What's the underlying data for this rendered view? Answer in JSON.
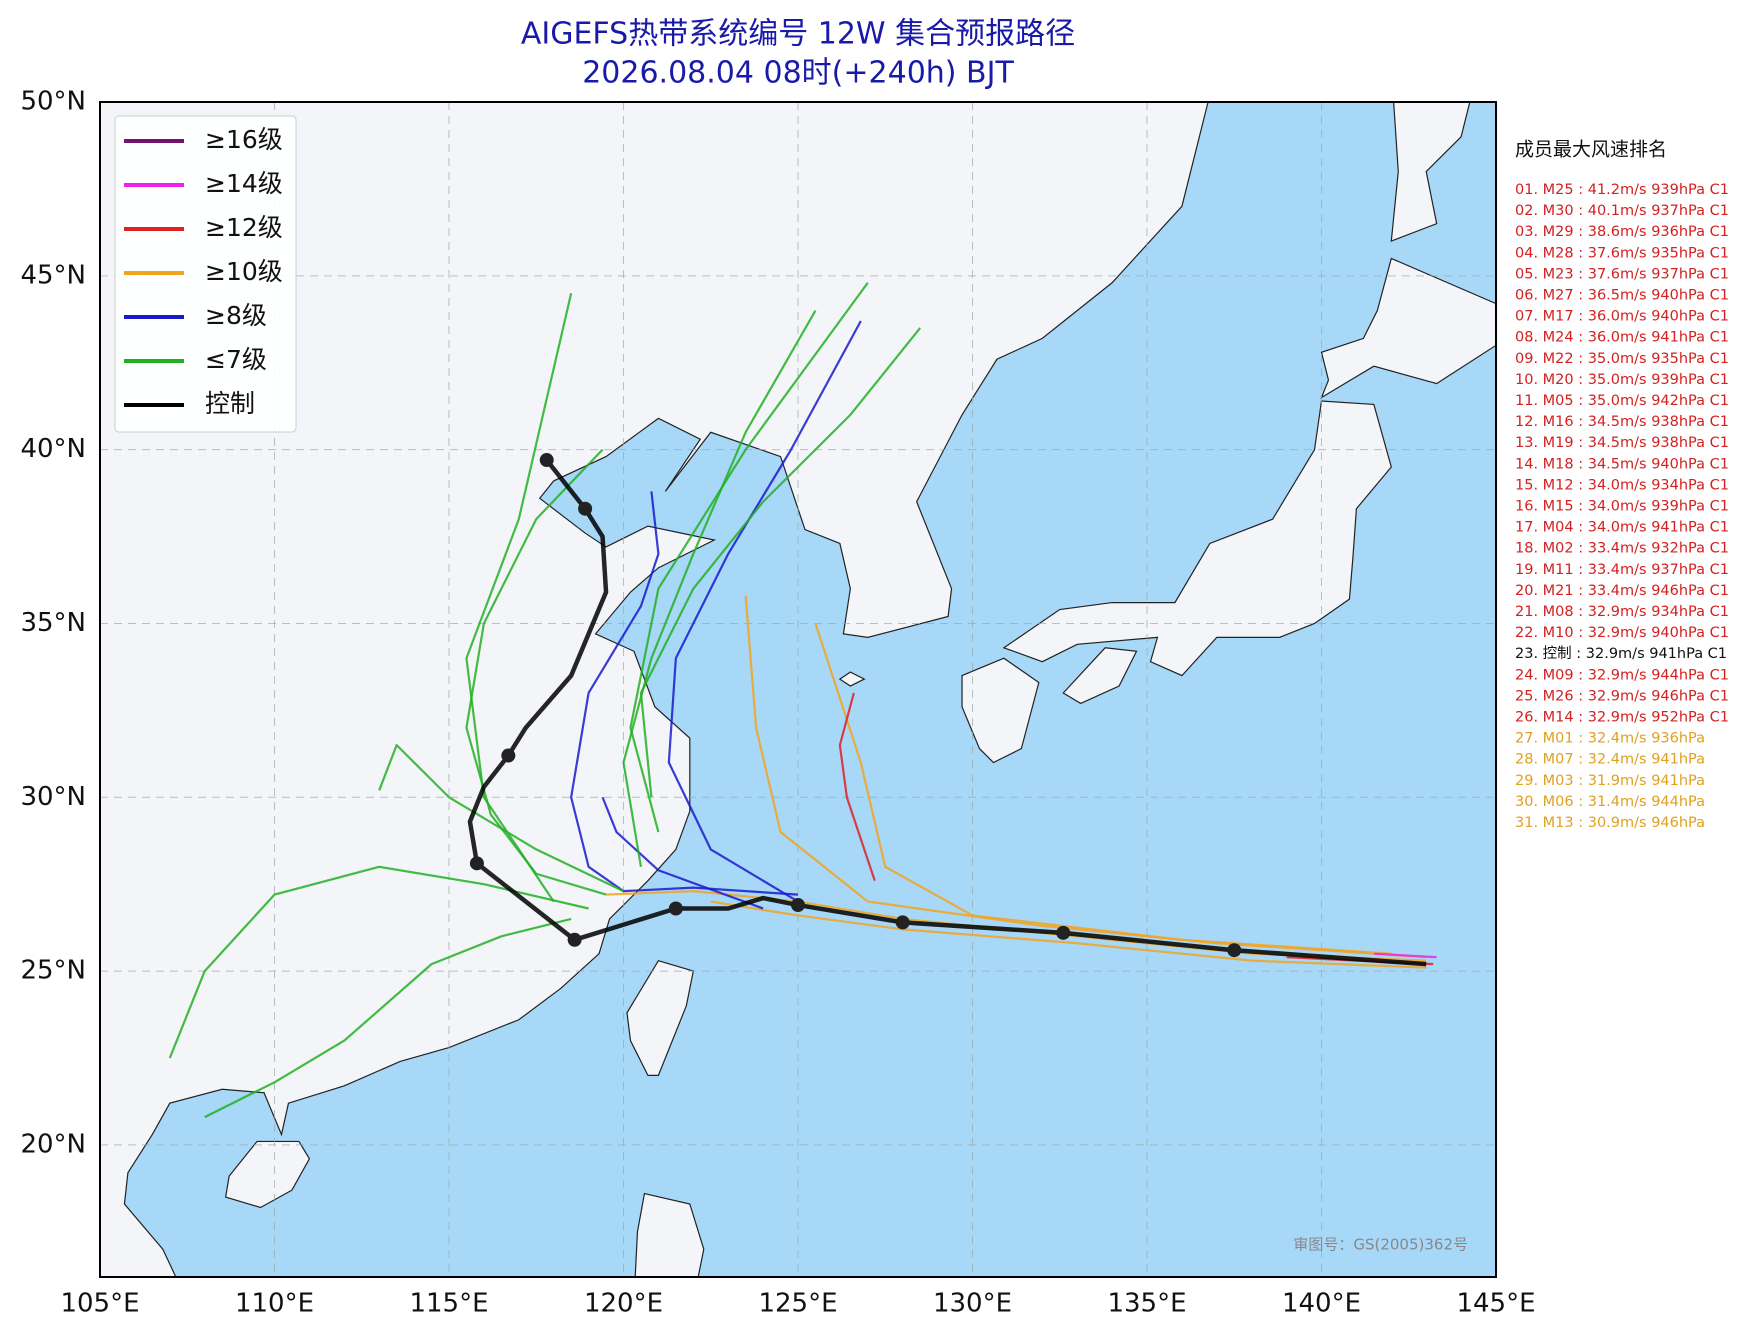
{
  "chart_data": {
    "type": "track_map",
    "title": "AIGEFS热带系统编号 12W 集合预报路径",
    "subtitle": "2026.08.04 08时(+240h) BJT",
    "xlim": [
      105,
      145
    ],
    "ylim": [
      16.2,
      50
    ],
    "xticks": [
      {
        "value": 105,
        "label": "105°E"
      },
      {
        "value": 110,
        "label": "110°E"
      },
      {
        "value": 115,
        "label": "115°E"
      },
      {
        "value": 120,
        "label": "120°E"
      },
      {
        "value": 125,
        "label": "125°E"
      },
      {
        "value": 130,
        "label": "130°E"
      },
      {
        "value": 135,
        "label": "135°E"
      },
      {
        "value": 140,
        "label": "140°E"
      },
      {
        "value": 145,
        "label": "145°E"
      }
    ],
    "yticks": [
      {
        "value": 20,
        "label": "20°N"
      },
      {
        "value": 25,
        "label": "25°N"
      },
      {
        "value": 30,
        "label": "30°N"
      },
      {
        "value": 35,
        "label": "35°N"
      },
      {
        "value": 40,
        "label": "40°N"
      },
      {
        "value": 45,
        "label": "45°N"
      },
      {
        "value": 50,
        "label": "50°N"
      }
    ],
    "grid": true,
    "legend": [
      {
        "label": "≥16级",
        "color": "#7a1070"
      },
      {
        "label": "≥14级",
        "color": "#ee22ee"
      },
      {
        "label": "≥12级",
        "color": "#dd2222"
      },
      {
        "label": "≥10级",
        "color": "#f2a31e"
      },
      {
        "label": "≥8级",
        "color": "#1a1acc"
      },
      {
        "label": "≤7级",
        "color": "#22b022"
      },
      {
        "label": "控制",
        "color": "#000000"
      }
    ],
    "members": [
      {
        "color": "#f2a31e",
        "lon": [
          143,
          138,
          133,
          128,
          125,
          122,
          119.5
        ],
        "lat": [
          25.3,
          25.5,
          26.0,
          26.5,
          27.0,
          27.3,
          27.2
        ]
      },
      {
        "color": "#f2a31e",
        "lon": [
          143,
          138,
          133,
          128,
          125,
          122.5
        ],
        "lat": [
          25.1,
          25.3,
          25.8,
          26.2,
          26.6,
          27.0
        ]
      },
      {
        "color": "#f2a31e",
        "lon": [
          143,
          137,
          132,
          127,
          124.5,
          123.8,
          123.5
        ],
        "lat": [
          25.4,
          25.8,
          26.3,
          27,
          29,
          32,
          35.8
        ]
      },
      {
        "color": "#f2a31e",
        "lon": [
          142,
          136,
          130,
          127.5,
          126.8,
          125.5
        ],
        "lat": [
          25.5,
          25.9,
          26.6,
          28,
          31,
          35
        ]
      },
      {
        "color": "#dd2222",
        "lon": [
          143.2,
          141,
          139
        ],
        "lat": [
          25.2,
          25.3,
          25.4
        ]
      },
      {
        "color": "#ee22ee",
        "lon": [
          143.3,
          141.5
        ],
        "lat": [
          25.4,
          25.5
        ]
      },
      {
        "color": "#dd2222",
        "lon": [
          127.2,
          126.4,
          126.2,
          126.6
        ],
        "lat": [
          27.6,
          30,
          31.5,
          33
        ]
      },
      {
        "color": "#1a1acc",
        "lon": [
          125,
          122,
          120,
          119,
          118.5,
          119,
          120.5,
          121,
          120.8
        ],
        "lat": [
          27.2,
          27.4,
          27.3,
          28,
          30,
          33,
          35.5,
          37,
          38.8
        ]
      },
      {
        "color": "#1a1acc",
        "lon": [
          125,
          122.5,
          121.3,
          121.5,
          123,
          124.8,
          126.8
        ],
        "lat": [
          27,
          28.5,
          31,
          34,
          37,
          40,
          43.7
        ]
      },
      {
        "color": "#1a1acc",
        "lon": [
          124,
          121,
          119.8,
          119.4
        ],
        "lat": [
          26.8,
          27.9,
          29,
          30
        ]
      },
      {
        "color": "#22b022",
        "lon": [
          119.5,
          117.5,
          116.2,
          115.5,
          116,
          117.5,
          119.4
        ],
        "lat": [
          27.2,
          27.8,
          29.5,
          32,
          35,
          38,
          40
        ]
      },
      {
        "color": "#22b022",
        "lon": [
          119,
          116,
          113,
          110,
          108,
          107
        ],
        "lat": [
          26.8,
          27.5,
          28,
          27.2,
          25,
          22.5
        ]
      },
      {
        "color": "#22b022",
        "lon": [
          120,
          117.5,
          115,
          113.5,
          113
        ],
        "lat": [
          27.3,
          28.5,
          30,
          31.5,
          30.2
        ]
      },
      {
        "color": "#22b022",
        "lon": [
          120.5,
          120,
          120.8,
          122,
          123.5,
          125.5
        ],
        "lat": [
          28,
          31,
          34,
          37,
          40.5,
          44
        ]
      },
      {
        "color": "#22b022",
        "lon": [
          120.8,
          120.5,
          122,
          124,
          126.5,
          128.5
        ],
        "lat": [
          30,
          33,
          36,
          38.5,
          41,
          43.5
        ]
      },
      {
        "color": "#22b022",
        "lon": [
          118,
          116,
          115.5,
          117,
          118.5
        ],
        "lat": [
          27,
          30,
          34,
          38,
          44.5
        ]
      },
      {
        "color": "#22b022",
        "lon": [
          118.5,
          116.5,
          114.5,
          112,
          110,
          108
        ],
        "lat": [
          26.5,
          26,
          25.2,
          23,
          21.8,
          20.8
        ]
      },
      {
        "color": "#22b022",
        "lon": [
          121,
          120.2,
          121,
          123.5,
          127
        ],
        "lat": [
          29,
          32,
          36,
          40,
          44.8
        ]
      }
    ],
    "control": {
      "color": "#000000",
      "lon": [
        143,
        137.5,
        132.6,
        128,
        125,
        124,
        123,
        121.5,
        118.6,
        115.8,
        115.6,
        116,
        116.7,
        117.2,
        118.5,
        119.5,
        119.4,
        118.9,
        117.8
      ],
      "lat": [
        25.2,
        25.6,
        26.1,
        26.4,
        26.9,
        27.1,
        26.8,
        26.8,
        25.9,
        28.1,
        29.3,
        30.3,
        31.2,
        32,
        33.5,
        35.9,
        37.5,
        38.3,
        39.7
      ]
    },
    "control_points": {
      "lon": [
        137.5,
        132.6,
        128,
        125,
        121.5,
        118.6,
        115.8,
        116.7,
        118.9,
        117.8
      ],
      "lat": [
        25.6,
        26.1,
        26.4,
        26.9,
        26.8,
        25.9,
        28.1,
        31.2,
        38.3,
        39.7
      ]
    },
    "ranking": {
      "title": "成员最大风速排名",
      "entries": [
        {
          "text": "01. M25 : 41.2m/s 939hPa C1",
          "color": "#d42020"
        },
        {
          "text": "02. M30 : 40.1m/s 937hPa C1",
          "color": "#d42020"
        },
        {
          "text": "03. M29 : 38.6m/s 936hPa C1",
          "color": "#d42020"
        },
        {
          "text": "04. M28 : 37.6m/s 935hPa C1",
          "color": "#d42020"
        },
        {
          "text": "05. M23 : 37.6m/s 937hPa C1",
          "color": "#d42020"
        },
        {
          "text": "06. M27 : 36.5m/s 940hPa C1",
          "color": "#d42020"
        },
        {
          "text": "07. M17 : 36.0m/s 940hPa C1",
          "color": "#d42020"
        },
        {
          "text": "08. M24 : 36.0m/s 941hPa C1",
          "color": "#d42020"
        },
        {
          "text": "09. M22 : 35.0m/s 935hPa C1",
          "color": "#d42020"
        },
        {
          "text": "10. M20 : 35.0m/s 939hPa C1",
          "color": "#d42020"
        },
        {
          "text": "11. M05 : 35.0m/s 942hPa C1",
          "color": "#d42020"
        },
        {
          "text": "12. M16 : 34.5m/s 938hPa C1",
          "color": "#d42020"
        },
        {
          "text": "13. M19 : 34.5m/s 938hPa C1",
          "color": "#d42020"
        },
        {
          "text": "14. M18 : 34.5m/s 940hPa C1",
          "color": "#d42020"
        },
        {
          "text": "15. M12 : 34.0m/s 934hPa C1",
          "color": "#d42020"
        },
        {
          "text": "16. M15 : 34.0m/s 939hPa C1",
          "color": "#d42020"
        },
        {
          "text": "17. M04 : 34.0m/s 941hPa C1",
          "color": "#d42020"
        },
        {
          "text": "18. M02 : 33.4m/s 932hPa C1",
          "color": "#d42020"
        },
        {
          "text": "19. M11 : 33.4m/s 937hPa C1",
          "color": "#d42020"
        },
        {
          "text": "20. M21 : 33.4m/s 946hPa C1",
          "color": "#d42020"
        },
        {
          "text": "21. M08 : 32.9m/s 934hPa C1",
          "color": "#d42020"
        },
        {
          "text": "22. M10 : 32.9m/s 940hPa C1",
          "color": "#d42020"
        },
        {
          "text": "23. 控制 : 32.9m/s 941hPa C1",
          "color": "#111111"
        },
        {
          "text": "24. M09 : 32.9m/s 944hPa C1",
          "color": "#d42020"
        },
        {
          "text": "25. M26 : 32.9m/s 946hPa C1",
          "color": "#d42020"
        },
        {
          "text": "26. M14 : 32.9m/s 952hPa C1",
          "color": "#d42020"
        },
        {
          "text": "27. M01 : 32.4m/s 936hPa",
          "color": "#e0a020"
        },
        {
          "text": "28. M07 : 32.4m/s 941hPa",
          "color": "#e0a020"
        },
        {
          "text": "29. M03 : 31.9m/s 941hPa",
          "color": "#e0a020"
        },
        {
          "text": "30. M06 : 31.4m/s 944hPa",
          "color": "#e0a020"
        },
        {
          "text": "31. M13 : 30.9m/s 946hPa",
          "color": "#e0a020"
        }
      ]
    },
    "footnote": "审图号：GS(2005)362号"
  }
}
